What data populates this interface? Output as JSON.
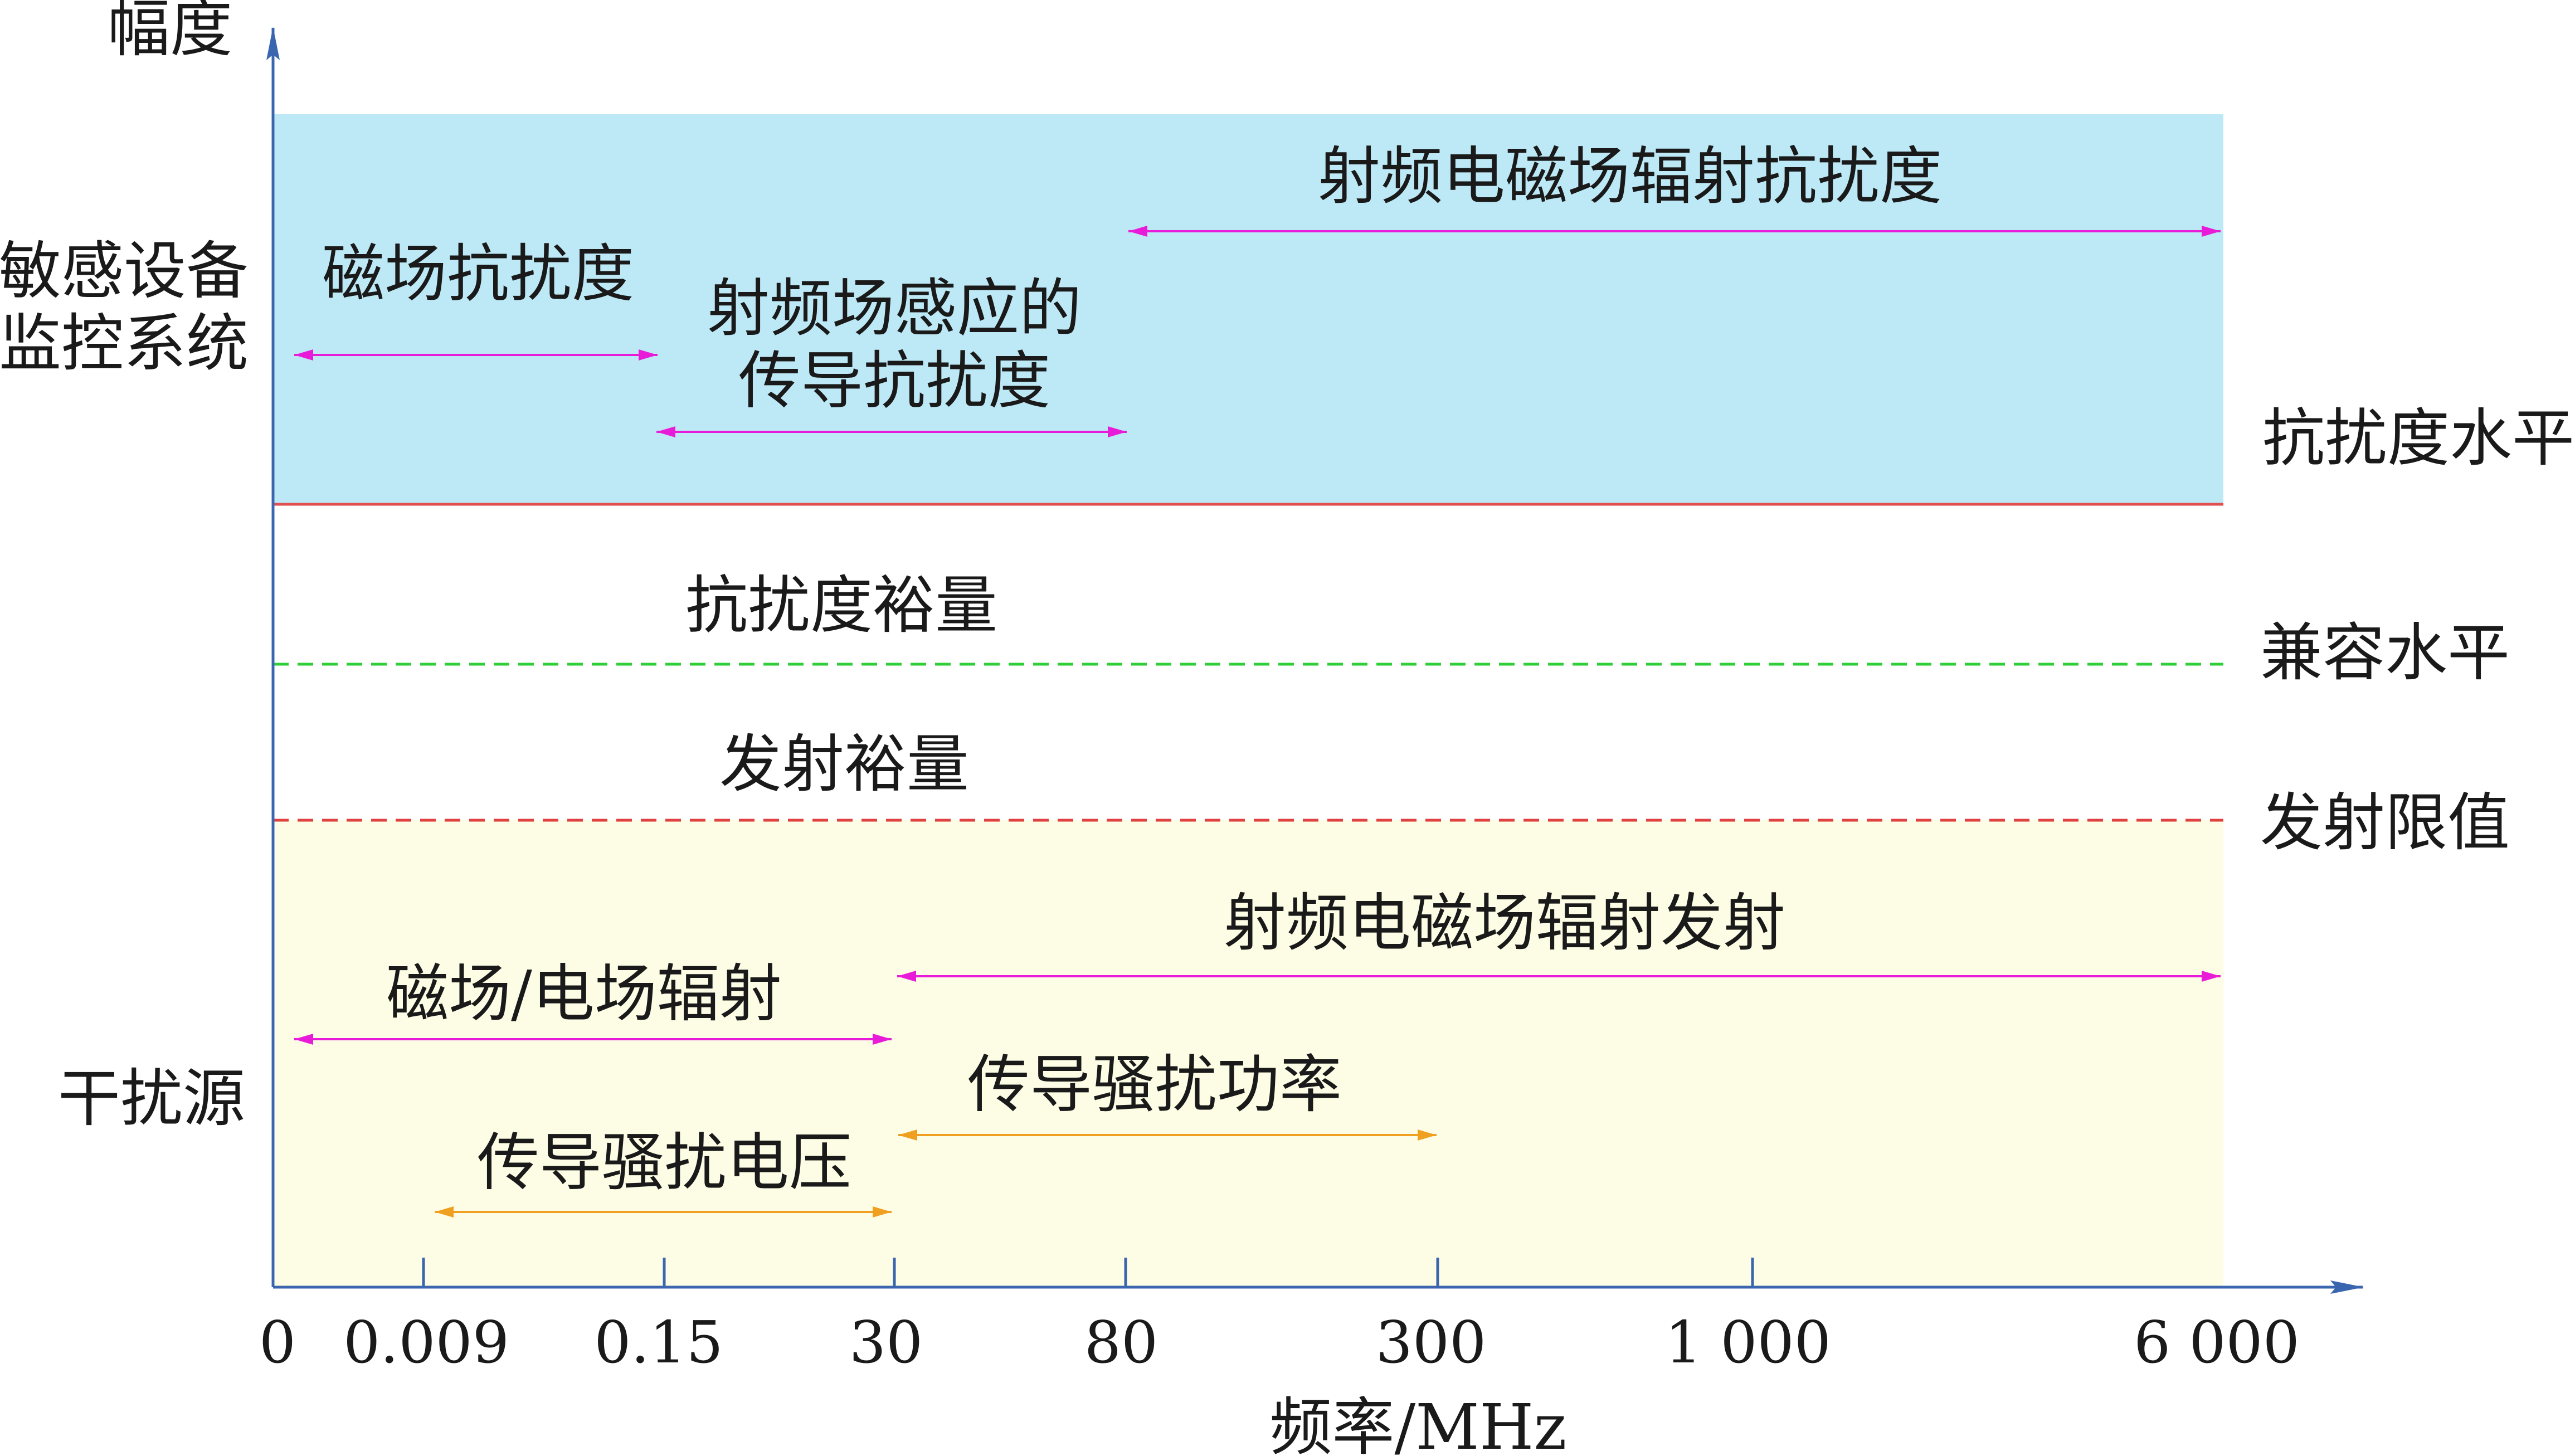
{
  "axes": {
    "y_label": "幅度",
    "x_label": "频率/MHz",
    "x_ticks": [
      "0",
      "0.009",
      "0.15",
      "30",
      "80",
      "300",
      "1 000",
      "6 000"
    ]
  },
  "left_labels": {
    "sensitive": [
      "敏感设备",
      "监控系统"
    ],
    "source": "干扰源"
  },
  "levels": {
    "immunity_level": "抗扰度水平",
    "compatibility_level": "兼容水平",
    "emission_limit": "发射限值"
  },
  "margins": {
    "immunity_margin": "抗扰度裕量",
    "emission_margin": "发射裕量"
  },
  "immunity": {
    "rf_radiated": "射频电磁场辐射抗扰度",
    "magnetic": "磁场抗扰度",
    "rf_conducted": [
      "射频场感应的",
      "传导抗扰度"
    ]
  },
  "emission": {
    "rf_radiated": "射频电磁场辐射发射",
    "field_radiation": "磁场/电场辐射",
    "conducted_power": "传导骚扰功率",
    "conducted_voltage": "传导骚扰电压"
  },
  "colors": {
    "immunity_region": "#BDE9F7",
    "source_region": "#FDFDE5",
    "axis": "#3A66B0",
    "immunity_line": "#E05050",
    "compatibility_line": "#2FCF3A",
    "emission_line": "#E04040",
    "arrow_magenta": "#E81CD8",
    "arrow_orange": "#F0A020"
  }
}
